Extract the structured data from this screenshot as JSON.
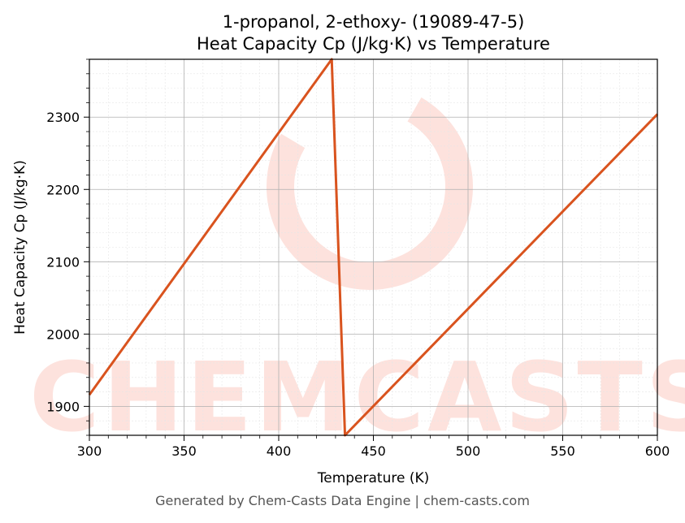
{
  "chart_data": {
    "type": "line",
    "title_line1": "1-propanol, 2-ethoxy- (19089-47-5)",
    "title_line2": "Heat Capacity Cp (J/kg·K) vs Temperature",
    "xlabel": "Temperature (K)",
    "ylabel": "Heat Capacity Cp (J/kg·K)",
    "xlim": [
      300,
      600
    ],
    "ylim": [
      1860,
      2380
    ],
    "xticks": [
      300,
      350,
      400,
      450,
      500,
      550,
      600
    ],
    "yticks": [
      1900,
      2000,
      2100,
      2200,
      2300
    ],
    "grid": true,
    "line_color": "#d9531e",
    "series": [
      {
        "x": [
          300,
          428,
          435,
          600
        ],
        "y": [
          1916,
          2380,
          1860,
          2304
        ]
      }
    ]
  },
  "watermark": "CHEMCASTS",
  "footer": "Generated by Chem-Casts Data Engine | chem-casts.com"
}
